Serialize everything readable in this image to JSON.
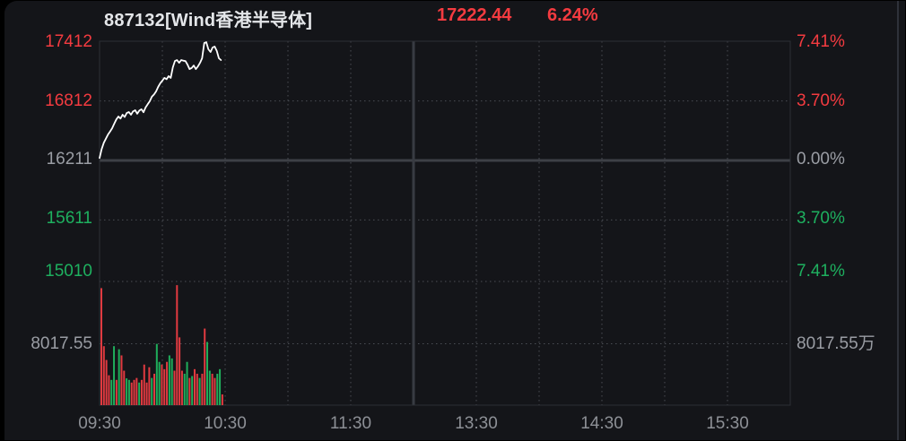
{
  "header": {
    "symbol": "887132[Wind香港半导体]",
    "last_price": "17222.44",
    "change_pct": "6.24%"
  },
  "colors": {
    "up": "#f43b40",
    "down": "#1eb05f",
    "neutral": "#9a9da4",
    "title": "#e4e6e9",
    "background": "#141519",
    "price_line": "#ffffff",
    "grid_dotted": "#4a4d54",
    "frame": "#2c2f35",
    "zero_line": "#3d4046",
    "session_divider": "#383b42",
    "bar_up": "#e13a40",
    "bar_down": "#1fae5b"
  },
  "left_axis": {
    "ticks": [
      {
        "label": "17412",
        "tone": "up"
      },
      {
        "label": "16812",
        "tone": "up"
      },
      {
        "label": "16211",
        "tone": "neutral"
      },
      {
        "label": "15611",
        "tone": "down"
      },
      {
        "label": "15010",
        "tone": "down"
      }
    ],
    "volume_label": {
      "label": "8017.55",
      "tone": "neutral"
    }
  },
  "right_axis": {
    "ticks": [
      {
        "label": "7.41%",
        "tone": "up"
      },
      {
        "label": "3.70%",
        "tone": "up"
      },
      {
        "label": "0.00%",
        "tone": "neutral"
      },
      {
        "label": "3.70%",
        "tone": "down"
      },
      {
        "label": "7.41%",
        "tone": "down"
      }
    ],
    "volume_label": {
      "label": "8017.55万",
      "tone": "neutral"
    }
  },
  "time_axis": [
    "09:30",
    "10:30",
    "11:30",
    "13:30",
    "14:30",
    "15:30"
  ],
  "chart_data": {
    "type": "line",
    "title": "887132[Wind香港半导体]",
    "last_price": 17222.44,
    "change_pct": 6.24,
    "price_axis_ticks": [
      17412,
      16812,
      16211,
      15611,
      15010
    ],
    "pct_axis_ticks": [
      7.41,
      3.7,
      0.0,
      -3.7,
      -7.41
    ],
    "pct_axis_range": [
      -7.41,
      7.41
    ],
    "prev_close": 16211,
    "volume_axis_mid": 8017.55,
    "volume_unit": "万",
    "x_labels": [
      "09:30",
      "10:30",
      "11:30",
      "13:30",
      "14:30",
      "15:30"
    ],
    "x_label_minutes": [
      0,
      60,
      120,
      180,
      240,
      300
    ],
    "grid_minutes": [
      30,
      60,
      90,
      120,
      180,
      210,
      240,
      270,
      300
    ],
    "session_break_minute": 150,
    "total_minutes": 330,
    "grid_on": true,
    "price_line_pct": [
      [
        0,
        0.15
      ],
      [
        1,
        0.7
      ],
      [
        2,
        1.1
      ],
      [
        3,
        1.35
      ],
      [
        4,
        1.6
      ],
      [
        5,
        1.8
      ],
      [
        6,
        2.0
      ],
      [
        7,
        2.28
      ],
      [
        8,
        2.55
      ],
      [
        9,
        2.73
      ],
      [
        10,
        2.6
      ],
      [
        11,
        2.84
      ],
      [
        12,
        2.7
      ],
      [
        13,
        2.95
      ],
      [
        14,
        3.01
      ],
      [
        15,
        2.84
      ],
      [
        16,
        3.05
      ],
      [
        17,
        3.12
      ],
      [
        18,
        2.9
      ],
      [
        19,
        3.1
      ],
      [
        20,
        3.18
      ],
      [
        21,
        3.0
      ],
      [
        22,
        3.29
      ],
      [
        23,
        3.5
      ],
      [
        24,
        3.68
      ],
      [
        25,
        3.96
      ],
      [
        26,
        4.1
      ],
      [
        27,
        4.29
      ],
      [
        28,
        4.57
      ],
      [
        29,
        4.8
      ],
      [
        30,
        4.96
      ],
      [
        31,
        5.13
      ],
      [
        32,
        5.05
      ],
      [
        33,
        5.24
      ],
      [
        34,
        5.13
      ],
      [
        35,
        5.79
      ],
      [
        36,
        6.18
      ],
      [
        37,
        6.24
      ],
      [
        38,
        6.07
      ],
      [
        39,
        6.24
      ],
      [
        40,
        6.2
      ],
      [
        41,
        6.18
      ],
      [
        42,
        5.96
      ],
      [
        43,
        5.68
      ],
      [
        44,
        5.75
      ],
      [
        45,
        5.9
      ],
      [
        46,
        5.68
      ],
      [
        47,
        5.85
      ],
      [
        48,
        6.07
      ],
      [
        49,
        6.35
      ],
      [
        50,
        7.3
      ],
      [
        51,
        7.35
      ],
      [
        52,
        6.91
      ],
      [
        53,
        6.74
      ],
      [
        54,
        7.02
      ],
      [
        55,
        7.08
      ],
      [
        56,
        6.8
      ],
      [
        57,
        6.35
      ],
      [
        58,
        6.24
      ]
    ],
    "volume_bars": [
      [
        15280,
        "up"
      ],
      [
        7700,
        "up"
      ],
      [
        5900,
        "up"
      ],
      [
        3900,
        "up"
      ],
      [
        3300,
        "down"
      ],
      [
        7700,
        "down"
      ],
      [
        3300,
        "up"
      ],
      [
        7300,
        "down"
      ],
      [
        6500,
        "up"
      ],
      [
        4500,
        "up"
      ],
      [
        3500,
        "down"
      ],
      [
        3300,
        "down"
      ],
      [
        2950,
        "up"
      ],
      [
        3300,
        "up"
      ],
      [
        3550,
        "up"
      ],
      [
        2950,
        "down"
      ],
      [
        3300,
        "up"
      ],
      [
        5300,
        "up"
      ],
      [
        2950,
        "up"
      ],
      [
        4950,
        "up"
      ],
      [
        3550,
        "down"
      ],
      [
        4100,
        "up"
      ],
      [
        8000,
        "down"
      ],
      [
        5650,
        "down"
      ],
      [
        5300,
        "up"
      ],
      [
        4700,
        "up"
      ],
      [
        5650,
        "up"
      ],
      [
        6500,
        "down"
      ],
      [
        6100,
        "down"
      ],
      [
        4500,
        "up"
      ],
      [
        15670,
        "up"
      ],
      [
        8850,
        "up"
      ],
      [
        4500,
        "up"
      ],
      [
        4100,
        "down"
      ],
      [
        5650,
        "down"
      ],
      [
        3550,
        "up"
      ],
      [
        3800,
        "down"
      ],
      [
        4700,
        "up"
      ],
      [
        4100,
        "up"
      ],
      [
        3550,
        "down"
      ],
      [
        4100,
        "up"
      ],
      [
        10000,
        "up"
      ],
      [
        8250,
        "down"
      ],
      [
        4500,
        "down"
      ],
      [
        4100,
        "up"
      ],
      [
        3550,
        "up"
      ],
      [
        4100,
        "down"
      ],
      [
        4700,
        "down"
      ],
      [
        1400,
        "up"
      ]
    ]
  }
}
